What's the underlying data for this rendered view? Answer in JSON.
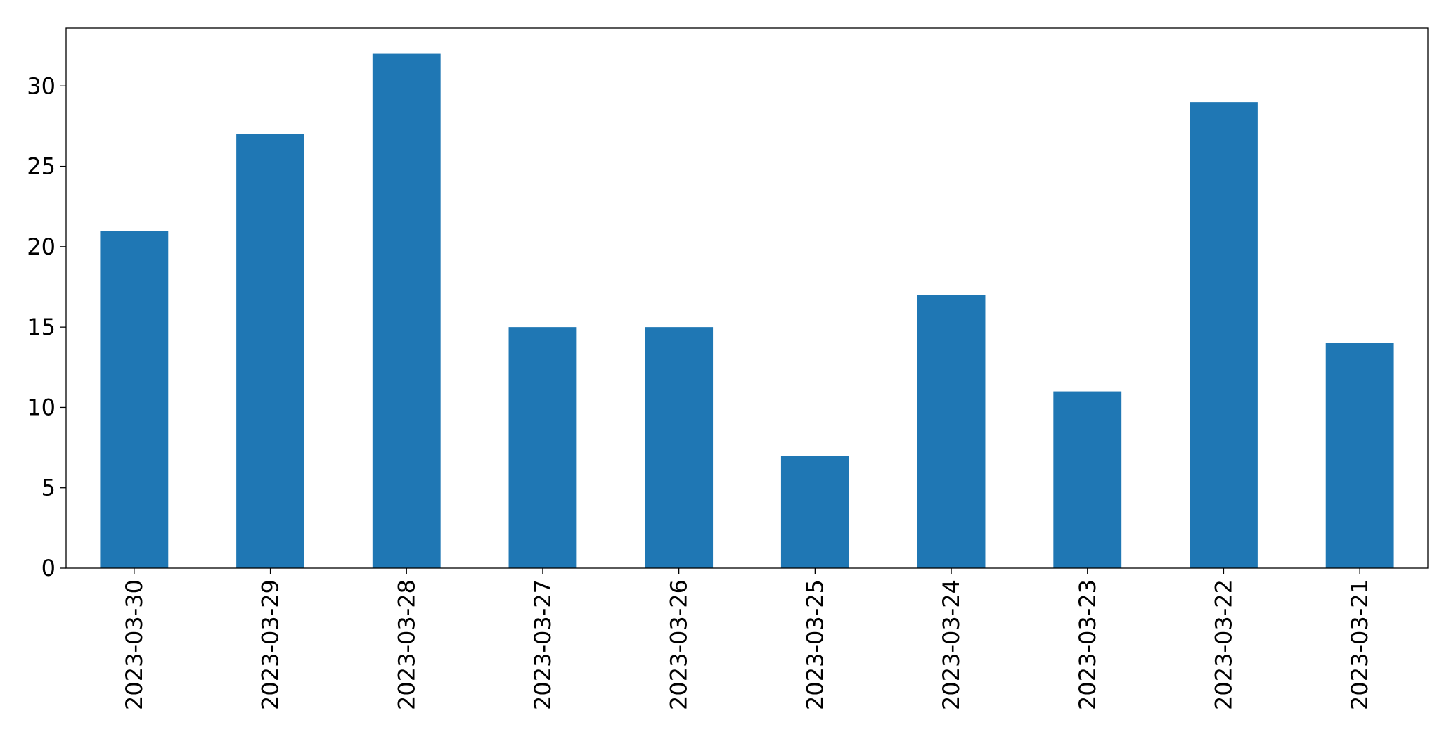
{
  "chart_data": {
    "type": "bar",
    "categories": [
      "2023-03-30",
      "2023-03-29",
      "2023-03-28",
      "2023-03-27",
      "2023-03-26",
      "2023-03-25",
      "2023-03-24",
      "2023-03-23",
      "2023-03-22",
      "2023-03-21"
    ],
    "values": [
      21,
      27,
      32,
      15,
      15,
      7,
      17,
      11,
      29,
      14
    ],
    "color": "#1f77b4",
    "ylim": [
      0,
      33.6
    ],
    "yticks": [
      0,
      5,
      10,
      15,
      20,
      25,
      30
    ],
    "grid": false
  }
}
